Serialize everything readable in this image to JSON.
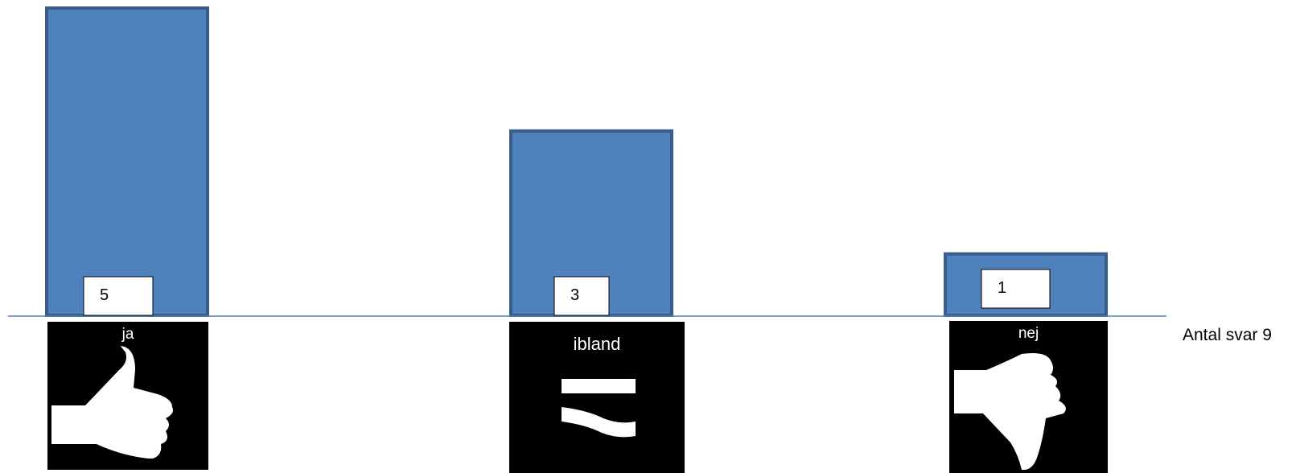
{
  "chart_data": {
    "type": "bar",
    "categories": [
      "ja",
      "ibland",
      "nej"
    ],
    "values": [
      5,
      3,
      1
    ],
    "data_labels": [
      "5",
      "3",
      "1"
    ],
    "category_icons": [
      "thumbs-up-icon",
      "approximately-equal-icon",
      "thumbs-down-icon"
    ],
    "ylim": [
      0,
      5
    ],
    "grid": false,
    "legend": "none",
    "bar_color": "#4f81bd",
    "bar_border_color": "#385d8a",
    "icon_panel_color": "#000000"
  },
  "annotation": {
    "total_label": "Antal svar 9"
  }
}
